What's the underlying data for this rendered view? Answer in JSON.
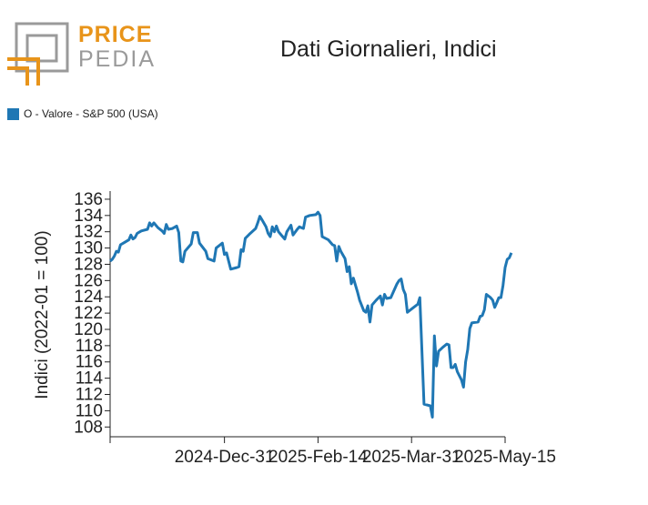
{
  "logo": {
    "top": "PRICE",
    "bottom": "PEDIA",
    "accent_color": "#e8941a",
    "gray_color": "#9a9a9a"
  },
  "chart_data": {
    "type": "line",
    "title": "Dati Giornalieri, Indici",
    "ylabel": "Indici (2022-01 = 100)",
    "xlabel": "",
    "ylim": [
      106.8,
      137
    ],
    "yticks": [
      108,
      110,
      112,
      114,
      116,
      118,
      120,
      122,
      124,
      126,
      128,
      130,
      132,
      134,
      136
    ],
    "xlim": [
      "2024-11-06",
      "2025-05-15"
    ],
    "xticks": [
      "2024-12-31",
      "2025-02-14",
      "2025-03-31",
      "2025-05-15"
    ],
    "xtick_labels": [
      "2024-Dec-31",
      "2025-Feb-14",
      "2025-Mar-31",
      "2025-May-15"
    ],
    "legend_position": "top-left",
    "series": [
      {
        "name": "O - Valore - S&P 500 (USA)",
        "color": "#1f77b4",
        "points": [
          [
            "2024-11-06",
            128.4
          ],
          [
            "2024-11-07",
            128.6
          ],
          [
            "2024-11-08",
            129.0
          ],
          [
            "2024-11-09",
            129.6
          ],
          [
            "2024-11-10",
            129.5
          ],
          [
            "2024-11-11",
            130.4
          ],
          [
            "2024-11-13",
            130.7
          ],
          [
            "2024-11-15",
            131.0
          ],
          [
            "2024-11-16",
            131.6
          ],
          [
            "2024-11-17",
            131.1
          ],
          [
            "2024-11-18",
            131.3
          ],
          [
            "2024-11-19",
            131.8
          ],
          [
            "2024-11-21",
            132.1
          ],
          [
            "2024-11-24",
            132.3
          ],
          [
            "2024-11-25",
            133.1
          ],
          [
            "2024-11-26",
            132.7
          ],
          [
            "2024-11-27",
            133.1
          ],
          [
            "2024-11-29",
            132.5
          ],
          [
            "2024-12-01",
            132.1
          ],
          [
            "2024-12-02",
            131.8
          ],
          [
            "2024-12-03",
            132.9
          ],
          [
            "2024-12-04",
            132.3
          ],
          [
            "2024-12-06",
            132.4
          ],
          [
            "2024-12-08",
            132.7
          ],
          [
            "2024-12-09",
            131.9
          ],
          [
            "2024-12-10",
            128.4
          ],
          [
            "2024-12-11",
            128.3
          ],
          [
            "2024-12-12",
            129.6
          ],
          [
            "2024-12-15",
            130.5
          ],
          [
            "2024-12-16",
            131.9
          ],
          [
            "2024-12-18",
            131.9
          ],
          [
            "2024-12-19",
            130.6
          ],
          [
            "2024-12-22",
            129.6
          ],
          [
            "2024-12-23",
            128.7
          ],
          [
            "2024-12-26",
            128.4
          ],
          [
            "2024-12-27",
            130.0
          ],
          [
            "2024-12-30",
            130.6
          ],
          [
            "2024-12-31",
            129.2
          ],
          [
            "2025-01-01",
            129.4
          ],
          [
            "2025-01-03",
            127.4
          ],
          [
            "2025-01-06",
            127.6
          ],
          [
            "2025-01-07",
            127.7
          ],
          [
            "2025-01-08",
            129.8
          ],
          [
            "2025-01-09",
            129.6
          ],
          [
            "2025-01-10",
            131.2
          ],
          [
            "2025-01-12",
            131.7
          ],
          [
            "2025-01-15",
            132.4
          ],
          [
            "2025-01-16",
            133.1
          ],
          [
            "2025-01-17",
            133.9
          ],
          [
            "2025-01-18",
            133.5
          ],
          [
            "2025-01-20",
            132.6
          ],
          [
            "2025-01-21",
            131.8
          ],
          [
            "2025-01-22",
            131.4
          ],
          [
            "2025-01-23",
            132.6
          ],
          [
            "2025-01-24",
            132.0
          ],
          [
            "2025-01-25",
            132.7
          ],
          [
            "2025-01-26",
            132.0
          ],
          [
            "2025-01-28",
            131.4
          ],
          [
            "2025-01-29",
            131.1
          ],
          [
            "2025-01-30",
            132.0
          ],
          [
            "2025-02-01",
            132.8
          ],
          [
            "2025-02-02",
            131.6
          ],
          [
            "2025-02-04",
            132.3
          ],
          [
            "2025-02-05",
            132.6
          ],
          [
            "2025-02-07",
            132.4
          ],
          [
            "2025-02-08",
            133.8
          ],
          [
            "2025-02-10",
            134.0
          ],
          [
            "2025-02-13",
            134.1
          ],
          [
            "2025-02-14",
            134.4
          ],
          [
            "2025-02-15",
            134.0
          ],
          [
            "2025-02-16",
            131.4
          ],
          [
            "2025-02-19",
            131.0
          ],
          [
            "2025-02-21",
            130.4
          ],
          [
            "2025-02-22",
            130.3
          ],
          [
            "2025-02-23",
            128.4
          ],
          [
            "2025-02-24",
            130.2
          ],
          [
            "2025-02-25",
            129.6
          ],
          [
            "2025-02-27",
            128.7
          ],
          [
            "2025-02-28",
            127.1
          ],
          [
            "2025-03-01",
            127.7
          ],
          [
            "2025-03-02",
            125.6
          ],
          [
            "2025-03-03",
            126.3
          ],
          [
            "2025-03-05",
            124.6
          ],
          [
            "2025-03-06",
            123.6
          ],
          [
            "2025-03-08",
            122.3
          ],
          [
            "2025-03-09",
            122.1
          ],
          [
            "2025-03-10",
            122.9
          ],
          [
            "2025-03-11",
            120.9
          ],
          [
            "2025-03-12",
            123.0
          ],
          [
            "2025-03-14",
            123.6
          ],
          [
            "2025-03-16",
            124.1
          ],
          [
            "2025-03-17",
            123.0
          ],
          [
            "2025-03-18",
            124.3
          ],
          [
            "2025-03-19",
            123.8
          ],
          [
            "2025-03-21",
            123.9
          ],
          [
            "2025-03-24",
            125.6
          ],
          [
            "2025-03-25",
            126.0
          ],
          [
            "2025-03-26",
            126.2
          ],
          [
            "2025-03-27",
            124.9
          ],
          [
            "2025-03-28",
            124.3
          ],
          [
            "2025-03-29",
            122.1
          ],
          [
            "2025-04-01",
            122.7
          ],
          [
            "2025-04-03",
            123.1
          ],
          [
            "2025-04-04",
            123.9
          ],
          [
            "2025-04-06",
            110.8
          ],
          [
            "2025-04-09",
            110.6
          ],
          [
            "2025-04-10",
            109.2
          ],
          [
            "2025-04-11",
            119.2
          ],
          [
            "2025-04-12",
            115.5
          ],
          [
            "2025-04-13",
            117.3
          ],
          [
            "2025-04-15",
            117.8
          ],
          [
            "2025-04-17",
            118.2
          ],
          [
            "2025-04-18",
            118.1
          ],
          [
            "2025-04-19",
            115.3
          ],
          [
            "2025-04-20",
            115.3
          ],
          [
            "2025-04-21",
            115.7
          ],
          [
            "2025-04-22",
            114.8
          ],
          [
            "2025-04-24",
            113.8
          ],
          [
            "2025-04-25",
            112.9
          ],
          [
            "2025-04-26",
            116.0
          ],
          [
            "2025-04-27",
            117.5
          ],
          [
            "2025-04-28",
            120.1
          ],
          [
            "2025-04-29",
            120.8
          ],
          [
            "2025-05-02",
            120.9
          ],
          [
            "2025-05-03",
            121.6
          ],
          [
            "2025-05-04",
            121.7
          ],
          [
            "2025-05-05",
            122.4
          ],
          [
            "2025-05-06",
            124.3
          ],
          [
            "2025-05-08",
            123.9
          ],
          [
            "2025-05-09",
            123.6
          ],
          [
            "2025-05-10",
            122.7
          ],
          [
            "2025-05-11",
            123.3
          ],
          [
            "2025-05-12",
            123.9
          ],
          [
            "2025-05-13",
            123.9
          ],
          [
            "2025-05-14",
            125.4
          ],
          [
            "2025-05-15",
            127.6
          ],
          [
            "2025-05-16",
            128.6
          ],
          [
            "2025-05-17",
            128.8
          ],
          [
            "2025-05-18",
            129.4
          ]
        ]
      }
    ]
  }
}
